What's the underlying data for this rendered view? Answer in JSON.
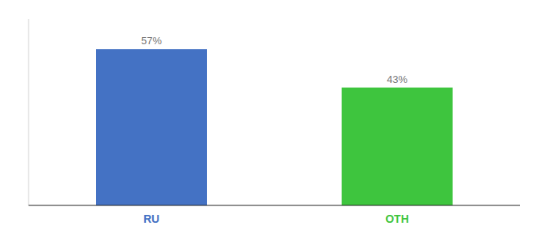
{
  "chart_data": {
    "type": "bar",
    "categories": [
      "RU",
      "OTH"
    ],
    "values": [
      57,
      43
    ],
    "value_labels": [
      "57%",
      "43%"
    ],
    "colors": [
      "#4472C4",
      "#3EC53E"
    ],
    "ylim": [
      0,
      68
    ],
    "data_labels": true,
    "tick_labels": "x"
  }
}
